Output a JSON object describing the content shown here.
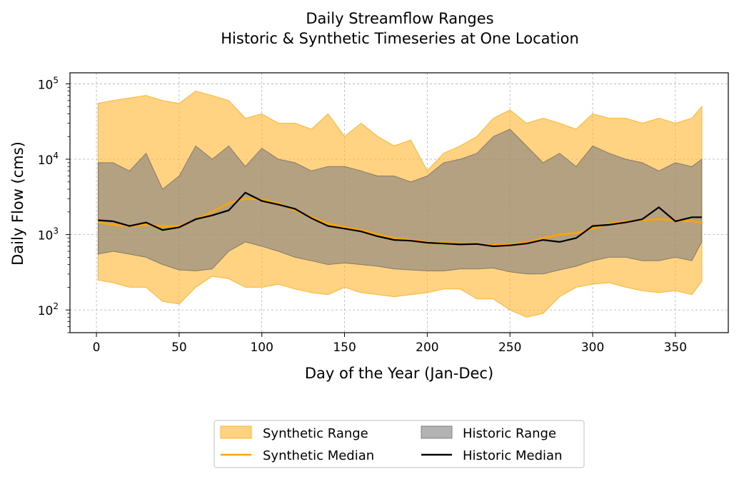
{
  "chart_data": {
    "type": "area",
    "title": "Daily Streamflow Ranges",
    "subtitle": "Historic & Synthetic Timeseries at One Location",
    "xlabel": "Day of the Year (Jan-Dec)",
    "ylabel": "Daily Flow (cms)",
    "xlim": [
      -16,
      382
    ],
    "ylim": [
      50,
      140000
    ],
    "yscale": "log",
    "grid": true,
    "x_ticks": [
      0,
      50,
      100,
      150,
      200,
      250,
      300,
      350
    ],
    "x_tick_labels": [
      "0",
      "50",
      "100",
      "150",
      "200",
      "250",
      "300",
      "350"
    ],
    "y_ticks": [
      100,
      1000,
      10000,
      100000
    ],
    "y_tick_labels": [
      {
        "base": "10",
        "exp": "2"
      },
      {
        "base": "10",
        "exp": "3"
      },
      {
        "base": "10",
        "exp": "4"
      },
      {
        "base": "10",
        "exp": "5"
      }
    ],
    "legend_position": "bottom-center",
    "legend": [
      {
        "label": "Synthetic Range",
        "kind": "patch",
        "color": "#ffb52e"
      },
      {
        "label": "Historic Range",
        "kind": "patch",
        "color": "#808080"
      },
      {
        "label": "Synthetic Median",
        "kind": "line",
        "color": "#ffa500"
      },
      {
        "label": "Historic Median",
        "kind": "line",
        "color": "#000000"
      }
    ],
    "x": [
      1,
      10,
      20,
      30,
      40,
      50,
      60,
      70,
      80,
      90,
      100,
      110,
      120,
      130,
      140,
      150,
      160,
      170,
      180,
      190,
      200,
      210,
      220,
      230,
      240,
      250,
      260,
      270,
      280,
      290,
      300,
      310,
      320,
      330,
      340,
      350,
      360,
      366
    ],
    "series": [
      {
        "name": "Synthetic Range",
        "color": "#ffb52e",
        "low": [
          250,
          230,
          200,
          200,
          130,
          120,
          200,
          280,
          260,
          200,
          200,
          220,
          190,
          170,
          160,
          200,
          170,
          160,
          150,
          160,
          170,
          190,
          190,
          140,
          140,
          100,
          80,
          90,
          150,
          200,
          220,
          230,
          200,
          180,
          170,
          180,
          160,
          240
        ],
        "high": [
          55000,
          60000,
          65000,
          70000,
          60000,
          55000,
          80000,
          70000,
          60000,
          35000,
          40000,
          30000,
          30000,
          25000,
          40000,
          20000,
          30000,
          20000,
          15000,
          18000,
          7000,
          12000,
          15000,
          20000,
          35000,
          45000,
          30000,
          35000,
          30000,
          25000,
          40000,
          35000,
          35000,
          30000,
          35000,
          30000,
          35000,
          50000
        ]
      },
      {
        "name": "Historic Range",
        "color": "#808080",
        "low": [
          550,
          600,
          550,
          500,
          400,
          340,
          330,
          350,
          600,
          800,
          700,
          600,
          500,
          450,
          400,
          420,
          400,
          380,
          350,
          340,
          330,
          330,
          350,
          350,
          360,
          320,
          300,
          300,
          340,
          380,
          450,
          500,
          500,
          450,
          450,
          500,
          450,
          800
        ],
        "high": [
          9000,
          9000,
          7000,
          12000,
          4000,
          6000,
          15000,
          10000,
          15000,
          8000,
          14000,
          10000,
          9000,
          7000,
          8000,
          8000,
          7000,
          6000,
          6000,
          5000,
          6000,
          9000,
          10000,
          12000,
          20000,
          25000,
          15000,
          9000,
          12000,
          8000,
          15000,
          12000,
          10000,
          9000,
          7000,
          9000,
          8000,
          10000
        ]
      },
      {
        "name": "Synthetic Median",
        "color": "#ffa500",
        "values": [
          1450,
          1350,
          1300,
          1350,
          1300,
          1300,
          1600,
          2000,
          2600,
          3000,
          2900,
          2600,
          2100,
          1700,
          1400,
          1250,
          1150,
          1000,
          900,
          850,
          800,
          780,
          750,
          740,
          730,
          740,
          780,
          900,
          1000,
          1050,
          1200,
          1400,
          1500,
          1550,
          1600,
          1550,
          1500,
          1450
        ]
      },
      {
        "name": "Historic Median",
        "color": "#000000",
        "values": [
          1550,
          1500,
          1300,
          1450,
          1150,
          1250,
          1600,
          1800,
          2100,
          3600,
          2800,
          2500,
          2200,
          1650,
          1300,
          1200,
          1100,
          950,
          850,
          830,
          780,
          760,
          740,
          750,
          700,
          720,
          760,
          850,
          800,
          900,
          1300,
          1350,
          1450,
          1600,
          2300,
          1500,
          1700,
          1700
        ]
      }
    ]
  }
}
